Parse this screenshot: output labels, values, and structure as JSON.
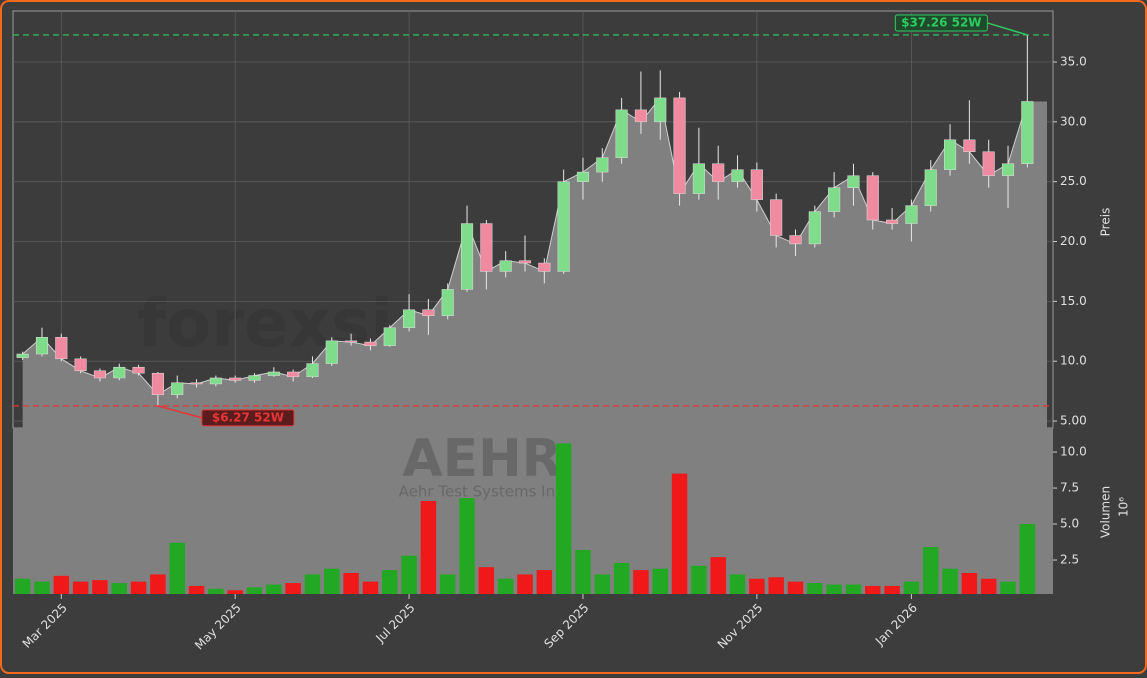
{
  "chart_data": {
    "type": "candlestick",
    "watermark": "forexsignale.trade",
    "symbol": "AEHR",
    "company": "Aehr Test Systems Inc",
    "y_label": "Preis",
    "y2_label": "Volumen",
    "y2_offset": "10⁶",
    "categories": [
      null,
      null,
      "Mar 2025",
      null,
      null,
      null,
      null,
      null,
      null,
      null,
      null,
      "May 2025",
      null,
      null,
      null,
      null,
      null,
      null,
      null,
      null,
      "Jul 2025",
      null,
      null,
      null,
      null,
      null,
      null,
      null,
      null,
      "Sep 2025",
      null,
      null,
      null,
      null,
      null,
      null,
      null,
      null,
      "Nov 2025",
      null,
      null,
      null,
      null,
      null,
      null,
      null,
      "Jan 2026",
      null,
      null,
      null,
      null,
      null,
      null
    ],
    "open": [
      10.3,
      10.6,
      12.0,
      10.2,
      9.2,
      8.6,
      9.5,
      9.0,
      7.2,
      8.2,
      8.1,
      8.6,
      8.4,
      8.8,
      9.1,
      8.7,
      9.8,
      11.7,
      11.6,
      11.3,
      12.8,
      14.3,
      13.8,
      16.0,
      21.5,
      17.5,
      18.4,
      18.2,
      17.5,
      25.0,
      25.8,
      27.0,
      31.0,
      30.0,
      32.0,
      24.0,
      26.5,
      25.0,
      26.0,
      23.5,
      20.5,
      19.8,
      22.5,
      24.5,
      25.5,
      21.8,
      21.5,
      23.0,
      26.0,
      28.5,
      27.5,
      25.5,
      26.5
    ],
    "high": [
      10.8,
      12.8,
      12.3,
      10.4,
      9.4,
      9.8,
      9.7,
      9.1,
      8.8,
      8.5,
      8.8,
      8.8,
      9.0,
      9.5,
      9.3,
      10.4,
      12.0,
      12.3,
      11.9,
      13.0,
      15.6,
      15.2,
      16.5,
      23.0,
      21.8,
      19.2,
      20.5,
      18.6,
      26.0,
      27.0,
      27.8,
      32.0,
      34.2,
      34.3,
      32.5,
      29.5,
      28.0,
      27.2,
      26.6,
      24.0,
      21.0,
      23.0,
      25.8,
      26.5,
      25.8,
      22.8,
      23.5,
      26.8,
      29.8,
      31.8,
      28.5,
      28.0,
      37.26
    ],
    "low": [
      10.1,
      10.4,
      10.0,
      9.0,
      8.3,
      8.4,
      8.8,
      6.27,
      6.9,
      7.8,
      7.9,
      8.2,
      8.2,
      8.7,
      8.3,
      8.6,
      9.6,
      11.3,
      10.9,
      11.2,
      12.5,
      12.2,
      13.5,
      15.8,
      16.0,
      17.0,
      17.5,
      16.5,
      17.3,
      23.5,
      25.0,
      26.5,
      29.0,
      28.5,
      23.0,
      23.5,
      23.5,
      24.5,
      22.5,
      19.5,
      18.8,
      19.5,
      22.0,
      23.0,
      21.0,
      21.0,
      20.0,
      22.5,
      25.5,
      26.5,
      24.5,
      22.8,
      26.2
    ],
    "close": [
      10.6,
      12.0,
      10.2,
      9.2,
      8.6,
      9.5,
      9.0,
      7.2,
      8.2,
      8.1,
      8.6,
      8.4,
      8.8,
      9.1,
      8.7,
      9.8,
      11.7,
      11.6,
      11.3,
      12.8,
      14.3,
      13.8,
      16.0,
      21.5,
      17.5,
      18.4,
      18.2,
      17.5,
      25.0,
      25.8,
      27.0,
      31.0,
      30.0,
      32.0,
      24.0,
      26.5,
      25.0,
      26.0,
      23.5,
      20.5,
      19.8,
      22.5,
      24.5,
      25.5,
      21.8,
      21.5,
      23.0,
      26.0,
      28.5,
      27.5,
      25.5,
      26.5,
      31.7
    ],
    "volume": [
      1.2,
      1.0,
      1.4,
      1.0,
      1.1,
      0.9,
      1.0,
      1.5,
      3.7,
      0.7,
      0.5,
      0.4,
      0.6,
      0.8,
      0.9,
      1.5,
      1.9,
      1.6,
      1.0,
      1.8,
      2.8,
      6.6,
      1.5,
      6.8,
      2.0,
      1.2,
      1.5,
      1.8,
      10.6,
      3.2,
      1.5,
      2.3,
      1.8,
      1.9,
      8.5,
      2.1,
      2.7,
      1.5,
      1.2,
      1.3,
      1.0,
      0.9,
      0.8,
      0.8,
      0.7,
      0.7,
      1.0,
      3.4,
      1.9,
      1.6,
      1.2,
      1.0,
      5.0
    ],
    "up_color": "#22a822",
    "down_color": "#f01818",
    "area_color": "#808080",
    "line_color": "#cfcfcf",
    "ylim": [
      4.42,
      39.26
    ],
    "yticks": [
      {
        "value": 5,
        "label": "5.00"
      },
      {
        "value": 10,
        "label": "10.0"
      },
      {
        "value": 15,
        "label": "15.0"
      },
      {
        "value": 20,
        "label": "20.0"
      },
      {
        "value": 25,
        "label": "25.0"
      },
      {
        "value": 30,
        "label": "30.0"
      },
      {
        "value": 35,
        "label": "35.0"
      }
    ],
    "y2lim": [
      0.14,
      11.67
    ],
    "y2ticks": [
      2.5,
      {
        "value": 5,
        "label": "5.0"
      },
      7.5,
      {
        "value": 10,
        "label": "10.0"
      }
    ],
    "grid": true,
    "hlines": [
      {
        "value": 37.26,
        "label": "$37.26 52W",
        "color": "#2ecc60"
      },
      {
        "value": 6.27,
        "label": "$6.27 52W",
        "color": "#e83535"
      }
    ]
  }
}
